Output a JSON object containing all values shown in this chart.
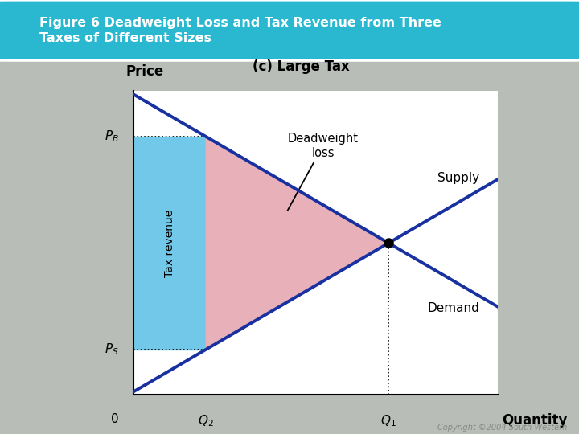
{
  "title_box": "Figure 6 Deadweight Loss and Tax Revenue from Three\nTaxes of Different Sizes",
  "subtitle": "(c) Large Tax",
  "bg_color": "#b8bdb8",
  "title_bg": "#2ab8d0",
  "title_text_color": "#ffffff",
  "plot_bg": "#ffffff",
  "supply_color": "#1830a0",
  "demand_color": "#1830a0",
  "tax_revenue_color": "#72c8e8",
  "deadweight_color": "#e8b0b8",
  "line_width": 2.8,
  "xlabel": "Quantity",
  "ylabel": "Price",
  "x_min": 0,
  "x_max": 10,
  "y_min": 0,
  "y_max": 10,
  "Q1": 7.0,
  "Q2": 2.0,
  "PB": 8.5,
  "PS": 1.5,
  "P_eq": 5.0,
  "supply_label": "Supply",
  "demand_label": "Demand",
  "tax_revenue_label": "Tax revenue",
  "deadweight_label": "Deadweight\nloss",
  "copyright": "Copyright ©2004 South-Western"
}
